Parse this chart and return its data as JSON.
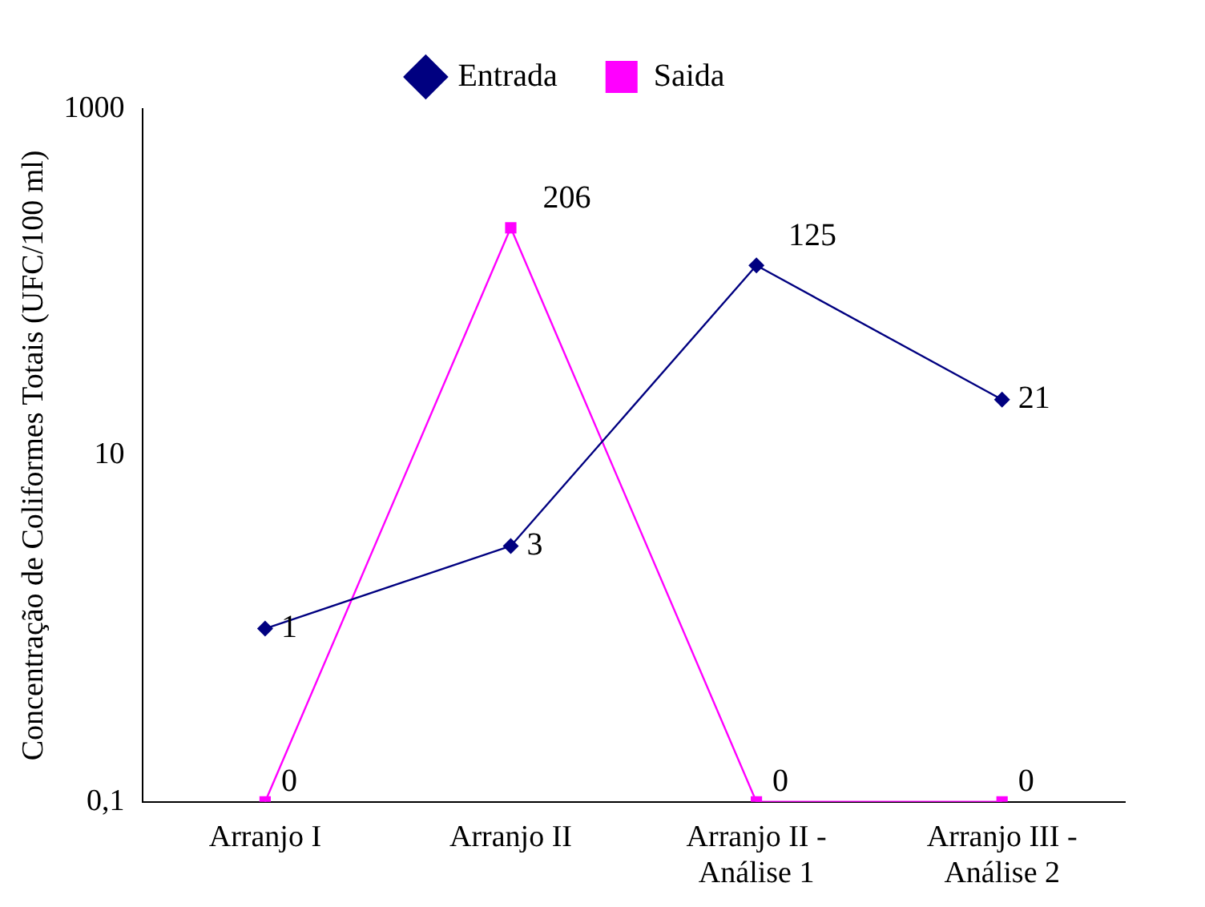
{
  "chart_data": {
    "type": "line",
    "ylabel": "Concentração de Coliformes Totais (UFC/100 ml)",
    "categories": [
      "Arranjo I",
      "Arranjo II",
      "Arranjo II - Análise 1",
      "Arranjo III - Análise 2"
    ],
    "series": [
      {
        "name": "Entrada",
        "color": "#000080",
        "marker": "diamond",
        "values": [
          1,
          3,
          125,
          21
        ]
      },
      {
        "name": "Saida",
        "color": "#ff00ff",
        "marker": "square",
        "values": [
          0.1,
          206,
          0.1,
          0.1
        ],
        "value_labels": [
          "0",
          "206",
          "0",
          "0"
        ]
      }
    ],
    "log": "y",
    "ylim": [
      0.1,
      1000
    ],
    "yticks": [
      {
        "value": 0.1,
        "label": "0,1"
      },
      10,
      1000
    ],
    "grid": false,
    "legend": "top",
    "data_labels": true,
    "line_style": "solid"
  }
}
